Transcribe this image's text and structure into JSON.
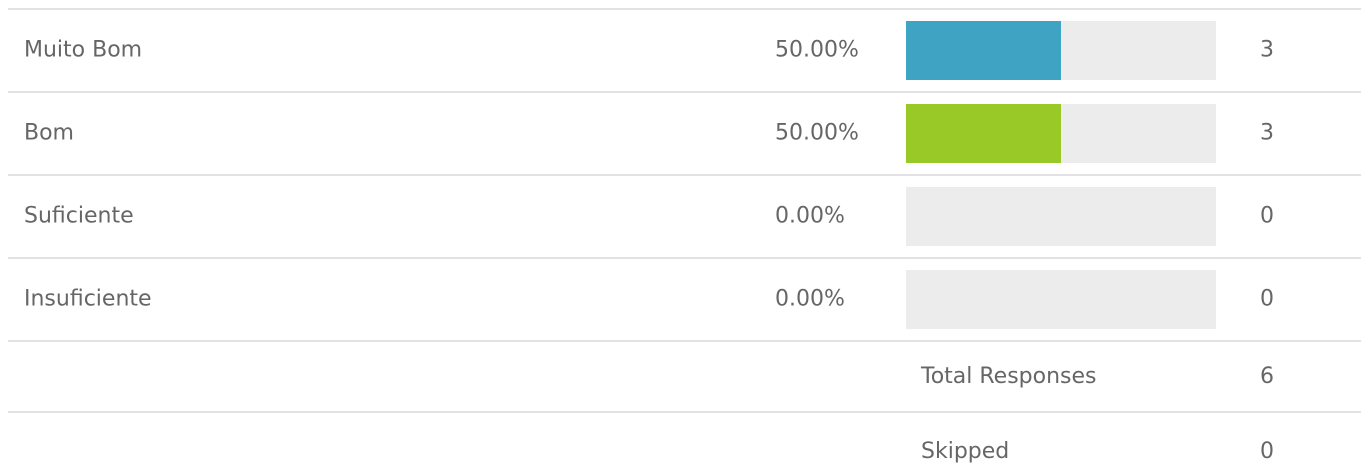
{
  "table": {
    "rows": [
      {
        "label": "Muito Bom",
        "percent": 50,
        "percent_label": "50.00%",
        "count": 3,
        "color": "#3fa3c4"
      },
      {
        "label": "Bom",
        "percent": 50,
        "percent_label": "50.00%",
        "count": 3,
        "color": "#99c926"
      },
      {
        "label": "Suficiente",
        "percent": 0,
        "percent_label": "0.00%",
        "count": 0
      },
      {
        "label": "Insuficiente",
        "percent": 0,
        "percent_label": "0.00%",
        "count": 0
      }
    ],
    "total": {
      "label": "Total Responses",
      "value": 6
    },
    "skipped": {
      "label": "Skipped",
      "value": 0
    }
  }
}
